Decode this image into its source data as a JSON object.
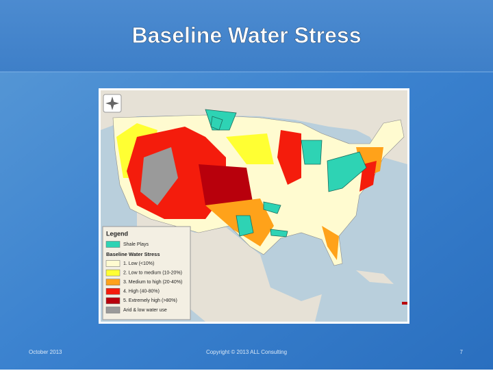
{
  "header": {
    "title": "Baseline Water Stress"
  },
  "map": {
    "legend": {
      "title": "Legend",
      "overlay": {
        "label": "Shale Plays",
        "color": "#2ed3b4"
      },
      "section_title": "Baseline Water Stress",
      "items": [
        {
          "label": "1. Low (<10%)",
          "color": "#fffbd0"
        },
        {
          "label": "2. Low to medium (10-20%)",
          "color": "#ffff33"
        },
        {
          "label": "3. Medium to high (20-40%)",
          "color": "#ffa21a"
        },
        {
          "label": "4. High (40-80%)",
          "color": "#f41c0c"
        },
        {
          "label": "5. Extremely high (>80%)",
          "color": "#b8000c"
        },
        {
          "label": "Arid & low water use",
          "color": "#9a9a9a"
        }
      ]
    }
  },
  "footer": {
    "date": "October 2013",
    "copyright": "Copyright © 2013 ALL Consulting",
    "page": 7
  }
}
